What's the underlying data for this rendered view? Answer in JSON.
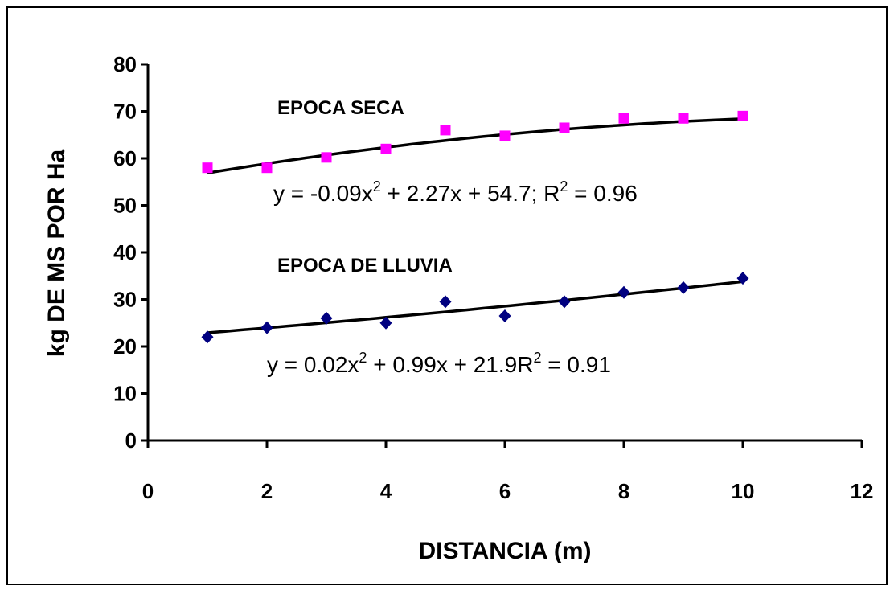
{
  "chart_data": {
    "type": "scatter",
    "xlabel": "DISTANCIA (m)",
    "ylabel": "kg DE MS POR Ha",
    "xlim": [
      0,
      12
    ],
    "ylim": [
      0,
      80
    ],
    "x_ticks": [
      "0",
      "2",
      "4",
      "6",
      "8",
      "10",
      "12"
    ],
    "y_ticks": [
      "0",
      "10",
      "20",
      "30",
      "40",
      "50",
      "60",
      "70",
      "80"
    ],
    "grid": false,
    "x": [
      1,
      2,
      3,
      4,
      5,
      6,
      7,
      8,
      9,
      10
    ],
    "series": [
      {
        "name": "EPOCA SECA",
        "marker": "square",
        "color": "#ff00ff",
        "values": [
          58,
          58,
          60.2,
          62,
          66,
          64.8,
          66.5,
          68.5,
          68.5,
          69
        ],
        "trendline": {
          "a": -0.09,
          "b": 2.27,
          "c": 54.7
        },
        "equation": {
          "part1": "y = -0.09x",
          "sup1": "2",
          "part2": " + 2.27x + 54.7; R",
          "sup2": "2",
          "part3": " = 0.96"
        }
      },
      {
        "name": "EPOCA DE LLUVIA",
        "marker": "diamond",
        "color": "#000080",
        "values": [
          22,
          24,
          26,
          25,
          29.5,
          26.5,
          29.5,
          31.5,
          32.5,
          34.5
        ],
        "trendline": {
          "a": 0.02,
          "b": 0.99,
          "c": 21.9
        },
        "equation": {
          "part1": "y = 0.02x",
          "sup1": "2",
          "part2": " + 0.99x + 21.9R",
          "sup2": "2",
          "part3": " = 0.91"
        }
      }
    ]
  }
}
